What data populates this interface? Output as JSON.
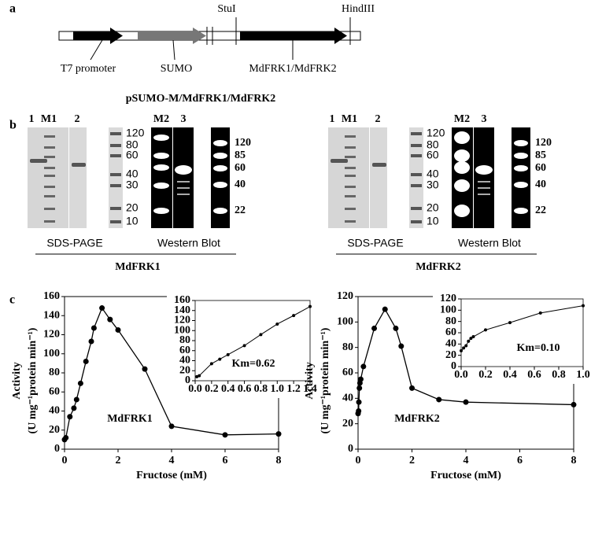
{
  "panel_a": {
    "label": "a",
    "sites": [
      "StuI",
      "HindIII"
    ],
    "features": [
      "T7 promoter",
      "SUMO",
      "MdFRK1/MdFRK2"
    ],
    "construct": "pSUMO-M/MdFRK1/MdFRK2"
  },
  "panel_b": {
    "label": "b",
    "blots": [
      {
        "lanes": [
          "1",
          "M1",
          "2",
          "M2",
          "3"
        ],
        "sds_markers": [
          "120",
          "80",
          "60",
          "40",
          "30",
          "20",
          "10"
        ],
        "wb_markers": [
          "120",
          "85",
          "60",
          "40",
          "22"
        ],
        "methods": [
          "SDS-PAGE",
          "Western Blot"
        ],
        "protein": "MdFRK1"
      },
      {
        "lanes": [
          "1",
          "M1",
          "2",
          "M2",
          "3"
        ],
        "sds_markers": [
          "120",
          "80",
          "60",
          "40",
          "30",
          "20",
          "10"
        ],
        "wb_markers": [
          "120",
          "85",
          "60",
          "40",
          "22"
        ],
        "methods": [
          "SDS-PAGE",
          "Western Blot"
        ],
        "protein": "MdFRK2"
      }
    ]
  },
  "panel_c": {
    "label": "c"
  },
  "chart_data": [
    {
      "type": "line",
      "color": "#000000",
      "xlabel": "Fructose (mM)",
      "ylabel": [
        "Activity",
        "(U mg⁻¹protein min⁻¹)"
      ],
      "annotation": "MdFRK1",
      "x": [
        0,
        0.05,
        0.2,
        0.35,
        0.45,
        0.6,
        0.8,
        1.0,
        1.1,
        1.4,
        1.7,
        2.0,
        3.0,
        4.0,
        6.0,
        8.0
      ],
      "values": [
        10,
        12,
        34,
        43,
        52,
        69,
        92,
        113,
        127,
        148,
        136,
        125,
        84,
        24,
        15,
        16
      ],
      "xlim": [
        0,
        8
      ],
      "xticks": [
        0,
        2,
        4,
        6,
        8
      ],
      "ylim": [
        0,
        160
      ],
      "yticks": [
        0,
        20,
        40,
        60,
        80,
        100,
        120,
        140,
        160
      ]
    },
    {
      "type": "line",
      "color": "#000000",
      "annotation": "Km=0.62",
      "x": [
        0.02,
        0.05,
        0.2,
        0.3,
        0.4,
        0.6,
        0.8,
        1.0,
        1.2,
        1.4
      ],
      "values": [
        8,
        10,
        34,
        43,
        52,
        70,
        92,
        113,
        130,
        148
      ],
      "xlim": [
        0,
        1.4
      ],
      "xticks": [
        {
          "value": 0,
          "label": "0.0"
        },
        0.2,
        0.4,
        0.6,
        0.8,
        {
          "value": 1,
          "label": "1.0"
        },
        1.2,
        1.4
      ],
      "ylim": [
        0,
        160
      ],
      "yticks": [
        0,
        20,
        40,
        60,
        80,
        100,
        120,
        140,
        160
      ]
    },
    {
      "type": "line",
      "color": "#000000",
      "xlabel": "Fructose (mM)",
      "ylabel": [
        "Activity",
        "(U mg⁻¹protein min⁻¹)"
      ],
      "annotation": "MdFRK2",
      "x": [
        0,
        0.02,
        0.03,
        0.05,
        0.07,
        0.1,
        0.2,
        0.6,
        1.0,
        1.4,
        1.6,
        2.0,
        3.0,
        4.0,
        8.0
      ],
      "values": [
        28,
        30,
        37,
        48,
        52,
        55,
        65,
        95,
        110,
        95,
        81,
        48,
        39,
        37,
        35
      ],
      "xlim": [
        0,
        8
      ],
      "xticks": [
        0,
        2,
        4,
        6,
        8
      ],
      "ylim": [
        0,
        120
      ],
      "yticks": [
        0,
        20,
        40,
        60,
        80,
        100,
        120
      ]
    },
    {
      "type": "line",
      "color": "#000000",
      "annotation": "Km=0.10",
      "x": [
        0,
        0.02,
        0.04,
        0.06,
        0.08,
        0.1,
        0.2,
        0.4,
        0.65,
        1.0
      ],
      "values": [
        28,
        33,
        37,
        45,
        50,
        53,
        65,
        78,
        95,
        108
      ],
      "xlim": [
        0,
        1
      ],
      "xticks": [
        {
          "value": 0,
          "label": "0.0"
        },
        0.2,
        0.4,
        0.6,
        0.8,
        {
          "value": 1,
          "label": "1.0"
        }
      ],
      "ylim": [
        0,
        120
      ],
      "yticks": [
        0,
        20,
        40,
        60,
        80,
        100,
        120
      ]
    }
  ]
}
